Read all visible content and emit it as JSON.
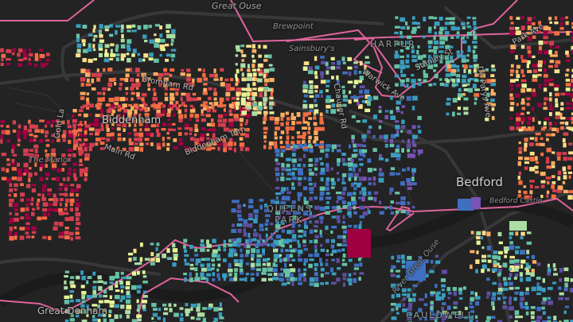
{
  "map": {
    "labels": {
      "great_ouse_top": "Great Ouse",
      "brewpoint": "Brewpoint",
      "sainsburys": "Sainsbury's",
      "harpur": "HARPUR",
      "stanley_st": "Stanley St",
      "warwick_ave": "Warwick Ave",
      "chaucer_rd": "Chaucer Rd",
      "park_ave": "Park Ave",
      "de_parys_ave": "De Parys Ave",
      "bromham_rd": "Bromham Rd",
      "biddenham": "Biddenham",
      "biddenham_turn": "Biddenham Turn",
      "main_rd": "Main Rd",
      "gold_la": "Gold La",
      "the_manor": "The Manor",
      "queens_park_1": "QUEENS",
      "queens_park_2": "PARK",
      "bedford": "Bedford",
      "bedford_castle": "Bedford Castle",
      "river_great_ouse": "River Great Ouse",
      "cauldwell": "CAULDWELL",
      "great_denham": "Great Denham"
    },
    "colors": {
      "background": "#232324",
      "roads": "#3a3a3b",
      "boundary": "#e0649c",
      "building_scale": [
        "#9e0142",
        "#d53e4f",
        "#f46d43",
        "#fdae61",
        "#fee08b",
        "#e6f598",
        "#abdda4",
        "#66c2a5",
        "#3a9dbf",
        "#3f6fc0",
        "#5e4fa2",
        "#7b52b5"
      ]
    }
  }
}
